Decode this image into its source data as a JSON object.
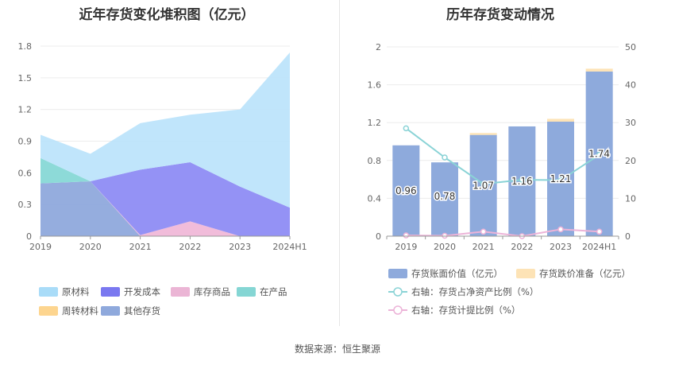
{
  "titles": {
    "left": "近年存货变化堆积图（亿元）",
    "right": "历年存货变动情况"
  },
  "source": "数据来源：恒生聚源",
  "chart_data": [
    {
      "type": "area",
      "stacked": true,
      "title": "近年存货变化堆积图（亿元）",
      "categories": [
        "2019",
        "2020",
        "2021",
        "2022",
        "2023",
        "2024H1"
      ],
      "yticks": [
        "0",
        "0.3",
        "0.6",
        "0.9",
        "1.2",
        "1.5",
        "1.8"
      ],
      "ylim": [
        0,
        1.8
      ],
      "series": [
        {
          "name": "其他存货",
          "color": "#8fa9dc",
          "values": [
            0.5,
            0.52,
            0,
            0,
            0,
            0
          ]
        },
        {
          "name": "周转材料",
          "color": "#fdd58f",
          "values": [
            0,
            0,
            0,
            0,
            0,
            0
          ]
        },
        {
          "name": "在产品",
          "color": "#87d8d6",
          "values": [
            0.24,
            0,
            0,
            0,
            0,
            0
          ]
        },
        {
          "name": "库存商品",
          "color": "#f0b8d8",
          "values": [
            0,
            0,
            0.01,
            0.14,
            0,
            0
          ]
        },
        {
          "name": "开发成本",
          "color": "#8e8cf4",
          "values": [
            0,
            0,
            0.62,
            0.56,
            0.47,
            0.27
          ]
        },
        {
          "name": "原材料",
          "color": "#bde4fb",
          "values": [
            0.22,
            0.26,
            0.44,
            0.45,
            0.73,
            1.47
          ]
        }
      ],
      "legend": [
        {
          "name": "原材料",
          "color": "#a9dcf8"
        },
        {
          "name": "开发成本",
          "color": "#7a78f0"
        },
        {
          "name": "库存商品",
          "color": "#ebb5d5"
        },
        {
          "name": "在产品",
          "color": "#85d6d4"
        },
        {
          "name": "周转材料",
          "color": "#fdd58f"
        },
        {
          "name": "其他存货",
          "color": "#8fa9dc"
        }
      ],
      "legend_position": "bottom",
      "grid": true
    },
    {
      "type": "bar+line",
      "title": "历年存货变动情况",
      "categories": [
        "2019",
        "2020",
        "2021",
        "2022",
        "2023",
        "2024H1"
      ],
      "left_yticks": [
        "0",
        "0.4",
        "0.8",
        "1.2",
        "1.6",
        "2"
      ],
      "right_yticks": [
        "0",
        "10",
        "20",
        "30",
        "40",
        "50"
      ],
      "ylim_left": [
        0,
        2
      ],
      "ylim_right": [
        0,
        50
      ],
      "bars": [
        {
          "name": "存货账面价值（亿元）",
          "color": "#8eaadc",
          "values": [
            0.96,
            0.78,
            1.07,
            1.16,
            1.21,
            1.74
          ],
          "labels": [
            "0.96",
            "0.78",
            "1.07",
            "1.16",
            "1.21",
            "1.74"
          ]
        },
        {
          "name": "存货跌价准备（亿元）",
          "color": "#fde3b6",
          "values": [
            0,
            0,
            0.02,
            0,
            0.03,
            0.03
          ]
        }
      ],
      "lines": [
        {
          "name": "右轴：存货占净资产比例（%）",
          "color": "#8ad3d6",
          "axis": "right",
          "values": [
            28.5,
            20.8,
            13.8,
            14.9,
            14.8,
            21.5
          ]
        },
        {
          "name": "右轴：存货计提比例（%）",
          "color": "#ecb3d8",
          "axis": "right",
          "values": [
            0.2,
            0.1,
            1.2,
            0,
            1.8,
            1.2
          ]
        }
      ],
      "legend_position": "bottom",
      "grid": true
    }
  ]
}
